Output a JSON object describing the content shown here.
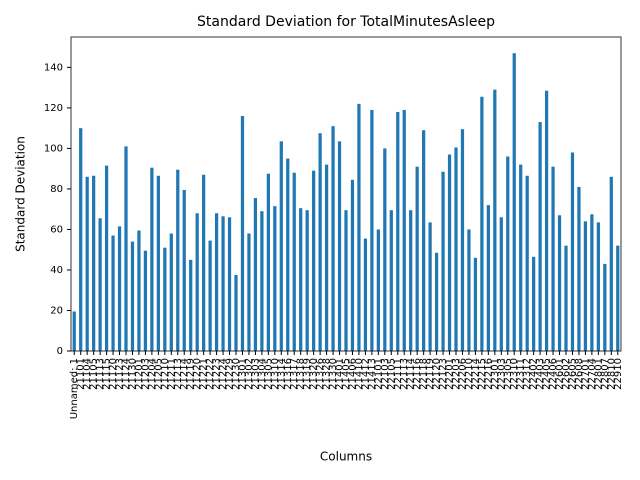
{
  "chart_data": {
    "type": "bar",
    "title": "Standard Deviation for TotalMinutesAsleep",
    "x_label": "Columns",
    "y_label": "Standard Deviation",
    "color": "#1f77b4",
    "categories": [
      "Unnamed: 1",
      "21101",
      "21104",
      "21105",
      "21113",
      "21115",
      "21120",
      "21123",
      "21124",
      "21130",
      "21201",
      "21203",
      "21204",
      "21205",
      "21210",
      "21211",
      "21213",
      "21214",
      "21219",
      "21220",
      "21221",
      "21222",
      "21223",
      "21224",
      "21229",
      "21230",
      "21301",
      "21302",
      "21303",
      "21304",
      "21305",
      "21310",
      "21314",
      "21316",
      "21317",
      "21318",
      "21319",
      "21320",
      "21326",
      "21328",
      "21330",
      "21401",
      "21405",
      "21406",
      "21410",
      "21412",
      "21413",
      "22101",
      "22103",
      "22105",
      "22111",
      "22113",
      "22114",
      "22116",
      "22118",
      "22119",
      "22120",
      "22123",
      "22201",
      "22203",
      "22206",
      "22210",
      "22214",
      "22215",
      "22216",
      "22301",
      "22303",
      "22305",
      "22310",
      "22311",
      "22312",
      "22402",
      "22403",
      "22405",
      "22406",
      "22601",
      "22602",
      "22605",
      "22608",
      "22701",
      "22704",
      "22801",
      "22807",
      "22810",
      "22910"
    ],
    "values": [
      19.5,
      110,
      86,
      86.5,
      65.5,
      91.5,
      57,
      61.5,
      101,
      54,
      59.5,
      49.5,
      90.5,
      86.5,
      51,
      58,
      89.5,
      79.5,
      45,
      68,
      87,
      54.5,
      68,
      66.5,
      66,
      37.5,
      116,
      58,
      75.5,
      69,
      87.5,
      71.5,
      103.5,
      95,
      88,
      70.5,
      69.5,
      89,
      107.5,
      92,
      111,
      103.5,
      69.5,
      84.5,
      122,
      55.5,
      119,
      60,
      100,
      69.5,
      118,
      119,
      69.5,
      91,
      109,
      63.5,
      48.5,
      88.5,
      97,
      100.5,
      109.5,
      60,
      46,
      125.5,
      72,
      129,
      66,
      96,
      147,
      92,
      86.5,
      46.5,
      113,
      128.5,
      91,
      67,
      52,
      98,
      81,
      64,
      67.5,
      63.5,
      43,
      86,
      52
    ],
    "ylim": [
      0,
      155
    ],
    "yticks": [
      0,
      20,
      40,
      60,
      80,
      100,
      120,
      140
    ],
    "grid": false
  }
}
